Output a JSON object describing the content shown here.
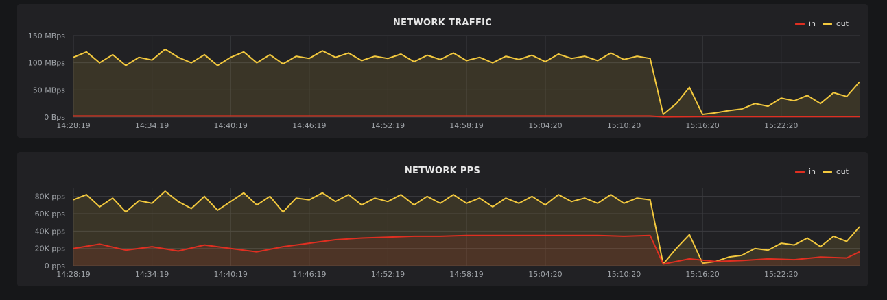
{
  "colors": {
    "in": "#e02f21",
    "out": "#f2c83e",
    "grid": "#3b3c40",
    "panel": "#212124",
    "background": "#161719"
  },
  "legend": {
    "in": "in",
    "out": "out"
  },
  "panels": [
    {
      "title": "NETWORK TRAFFIC"
    },
    {
      "title": "NETWORK PPS"
    }
  ],
  "chart_data": [
    {
      "type": "area",
      "title": "NETWORK TRAFFIC",
      "y_unit": "Bps",
      "ylim": [
        0,
        150000000
      ],
      "y_ticks": [
        0,
        50000000,
        100000000,
        150000000
      ],
      "y_tick_labels": [
        "0 Bps",
        "50 MBps",
        "100 MBps",
        "150 MBps"
      ],
      "x_ticks": [
        "14:28:19",
        "14:34:19",
        "14:40:19",
        "14:46:19",
        "14:52:19",
        "14:58:19",
        "15:04:20",
        "15:10:20",
        "15:16:20",
        "15:22:20"
      ],
      "x_range": [
        "14:28:19",
        "15:28:19"
      ],
      "grid": true,
      "legend_position": "top-right",
      "series": [
        {
          "name": "in",
          "color": "#e02f21",
          "x": [
            "14:28:19",
            "14:32:19",
            "14:36:19",
            "14:40:19",
            "14:44:19",
            "14:48:19",
            "14:52:19",
            "14:56:19",
            "15:00:19",
            "15:04:19",
            "15:08:19",
            "15:12:19",
            "15:13:19",
            "15:16:19",
            "15:20:19",
            "15:24:19",
            "15:28:19"
          ],
          "values": [
            2000000,
            2000000,
            2000000,
            2000000,
            2000000,
            2000000,
            2000000,
            2000000,
            2000000,
            2000000,
            2000000,
            2000000,
            500000,
            1000000,
            1000000,
            1000000,
            1000000
          ]
        },
        {
          "name": "out",
          "color": "#f2c83e",
          "x": [
            "14:28:19",
            "14:29:19",
            "14:30:19",
            "14:31:19",
            "14:32:19",
            "14:33:19",
            "14:34:19",
            "14:35:19",
            "14:36:19",
            "14:37:19",
            "14:38:19",
            "14:39:19",
            "14:40:19",
            "14:41:19",
            "14:42:19",
            "14:43:19",
            "14:44:19",
            "14:45:19",
            "14:46:19",
            "14:47:19",
            "14:48:19",
            "14:49:19",
            "14:50:19",
            "14:51:19",
            "14:52:19",
            "14:53:19",
            "14:54:19",
            "14:55:19",
            "14:56:19",
            "14:57:19",
            "14:58:19",
            "14:59:19",
            "15:00:19",
            "15:01:19",
            "15:02:19",
            "15:03:19",
            "15:04:20",
            "15:05:20",
            "15:06:20",
            "15:07:20",
            "15:08:20",
            "15:09:20",
            "15:10:20",
            "15:11:20",
            "15:12:20",
            "15:13:20",
            "15:14:20",
            "15:15:20",
            "15:16:20",
            "15:17:20",
            "15:18:20",
            "15:19:20",
            "15:20:20",
            "15:21:20",
            "15:22:20",
            "15:23:20",
            "15:24:20",
            "15:25:20",
            "15:26:20",
            "15:27:20",
            "15:28:19"
          ],
          "values": [
            110000000,
            120000000,
            100000000,
            115000000,
            95000000,
            110000000,
            105000000,
            125000000,
            110000000,
            100000000,
            115000000,
            95000000,
            110000000,
            120000000,
            100000000,
            115000000,
            98000000,
            112000000,
            108000000,
            122000000,
            110000000,
            118000000,
            104000000,
            112000000,
            108000000,
            116000000,
            102000000,
            114000000,
            106000000,
            118000000,
            104000000,
            110000000,
            100000000,
            112000000,
            106000000,
            114000000,
            102000000,
            116000000,
            108000000,
            112000000,
            104000000,
            118000000,
            106000000,
            112000000,
            108000000,
            5000000,
            25000000,
            55000000,
            5000000,
            8000000,
            12000000,
            15000000,
            25000000,
            20000000,
            35000000,
            30000000,
            40000000,
            25000000,
            45000000,
            38000000,
            65000000
          ]
        }
      ]
    },
    {
      "type": "area",
      "title": "NETWORK PPS",
      "y_unit": "pps",
      "ylim": [
        0,
        90000
      ],
      "y_ticks": [
        0,
        20000,
        40000,
        60000,
        80000
      ],
      "y_tick_labels": [
        "0 pps",
        "20K pps",
        "40K pps",
        "60K pps",
        "80K pps"
      ],
      "x_ticks": [
        "14:28:19",
        "14:34:19",
        "14:40:19",
        "14:46:19",
        "14:52:19",
        "14:58:19",
        "15:04:20",
        "15:10:20",
        "15:16:20",
        "15:22:20"
      ],
      "x_range": [
        "14:28:19",
        "15:28:19"
      ],
      "grid": true,
      "legend_position": "top-right",
      "series": [
        {
          "name": "in",
          "color": "#e02f21",
          "x": [
            "14:28:19",
            "14:30:19",
            "14:32:19",
            "14:34:19",
            "14:36:19",
            "14:38:19",
            "14:40:19",
            "14:42:19",
            "14:44:19",
            "14:46:19",
            "14:48:19",
            "14:50:19",
            "14:52:19",
            "14:54:19",
            "14:56:19",
            "14:58:19",
            "15:00:19",
            "15:02:19",
            "15:04:20",
            "15:06:20",
            "15:08:20",
            "15:10:20",
            "15:12:20",
            "15:13:20",
            "15:15:20",
            "15:17:20",
            "15:19:20",
            "15:21:20",
            "15:23:20",
            "15:25:20",
            "15:27:20",
            "15:28:19"
          ],
          "values": [
            20000,
            25000,
            18000,
            22000,
            17000,
            24000,
            20000,
            16000,
            22000,
            26000,
            30000,
            32000,
            33000,
            34000,
            34000,
            35000,
            35000,
            35000,
            35000,
            35000,
            35000,
            34000,
            35000,
            2000,
            8000,
            5000,
            6000,
            8000,
            7000,
            10000,
            9000,
            16000
          ]
        },
        {
          "name": "out",
          "color": "#f2c83e",
          "x": [
            "14:28:19",
            "14:29:19",
            "14:30:19",
            "14:31:19",
            "14:32:19",
            "14:33:19",
            "14:34:19",
            "14:35:19",
            "14:36:19",
            "14:37:19",
            "14:38:19",
            "14:39:19",
            "14:40:19",
            "14:41:19",
            "14:42:19",
            "14:43:19",
            "14:44:19",
            "14:45:19",
            "14:46:19",
            "14:47:19",
            "14:48:19",
            "14:49:19",
            "14:50:19",
            "14:51:19",
            "14:52:19",
            "14:53:19",
            "14:54:19",
            "14:55:19",
            "14:56:19",
            "14:57:19",
            "14:58:19",
            "14:59:19",
            "15:00:19",
            "15:01:19",
            "15:02:19",
            "15:03:19",
            "15:04:20",
            "15:05:20",
            "15:06:20",
            "15:07:20",
            "15:08:20",
            "15:09:20",
            "15:10:20",
            "15:11:20",
            "15:12:20",
            "15:13:20",
            "15:14:20",
            "15:15:20",
            "15:16:20",
            "15:17:20",
            "15:18:20",
            "15:19:20",
            "15:20:20",
            "15:21:20",
            "15:22:20",
            "15:23:20",
            "15:24:20",
            "15:25:20",
            "15:26:20",
            "15:27:20",
            "15:28:19"
          ],
          "values": [
            76000,
            82000,
            68000,
            78000,
            62000,
            75000,
            72000,
            86000,
            74000,
            66000,
            80000,
            64000,
            74000,
            84000,
            70000,
            80000,
            62000,
            78000,
            76000,
            84000,
            74000,
            82000,
            70000,
            78000,
            74000,
            82000,
            70000,
            80000,
            72000,
            82000,
            72000,
            78000,
            68000,
            78000,
            72000,
            80000,
            70000,
            82000,
            74000,
            78000,
            72000,
            82000,
            72000,
            78000,
            76000,
            2000,
            20000,
            36000,
            3000,
            5000,
            10000,
            12000,
            20000,
            18000,
            26000,
            24000,
            32000,
            22000,
            34000,
            28000,
            45000
          ]
        }
      ]
    }
  ]
}
